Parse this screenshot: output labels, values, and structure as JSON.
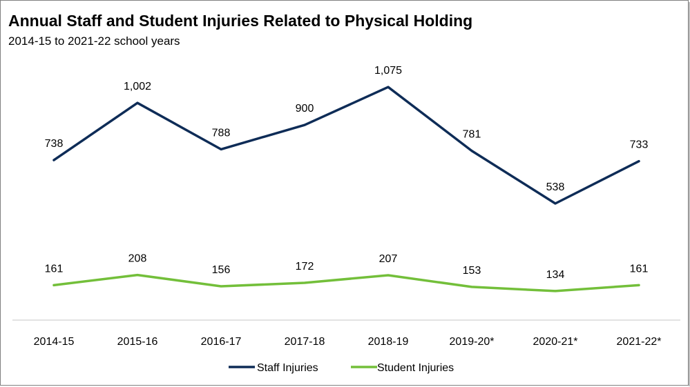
{
  "chart_data": {
    "type": "line",
    "title": "Annual Staff and Student Injuries Related to Physical Holding",
    "subtitle": "2014-15 to 2021-22 school years",
    "categories": [
      "2014-15",
      "2015-16",
      "2016-17",
      "2017-18",
      "2018-19",
      "2019-20*",
      "2020-21*",
      "2021-22*"
    ],
    "series": [
      {
        "name": "Staff Injuries",
        "color": "#0e2c57",
        "values": [
          738,
          1002,
          788,
          900,
          1075,
          781,
          538,
          733
        ],
        "labels": [
          "738",
          "1,002",
          "788",
          "900",
          "1,075",
          "781",
          "538",
          "733"
        ]
      },
      {
        "name": "Student Injuries",
        "color": "#73bf3a",
        "values": [
          161,
          208,
          156,
          172,
          207,
          153,
          134,
          161
        ],
        "labels": [
          "161",
          "208",
          "156",
          "172",
          "207",
          "153",
          "134",
          "161"
        ]
      }
    ],
    "ylim": [
      0,
      1200
    ],
    "grid": false,
    "legend": "bottom-center"
  }
}
